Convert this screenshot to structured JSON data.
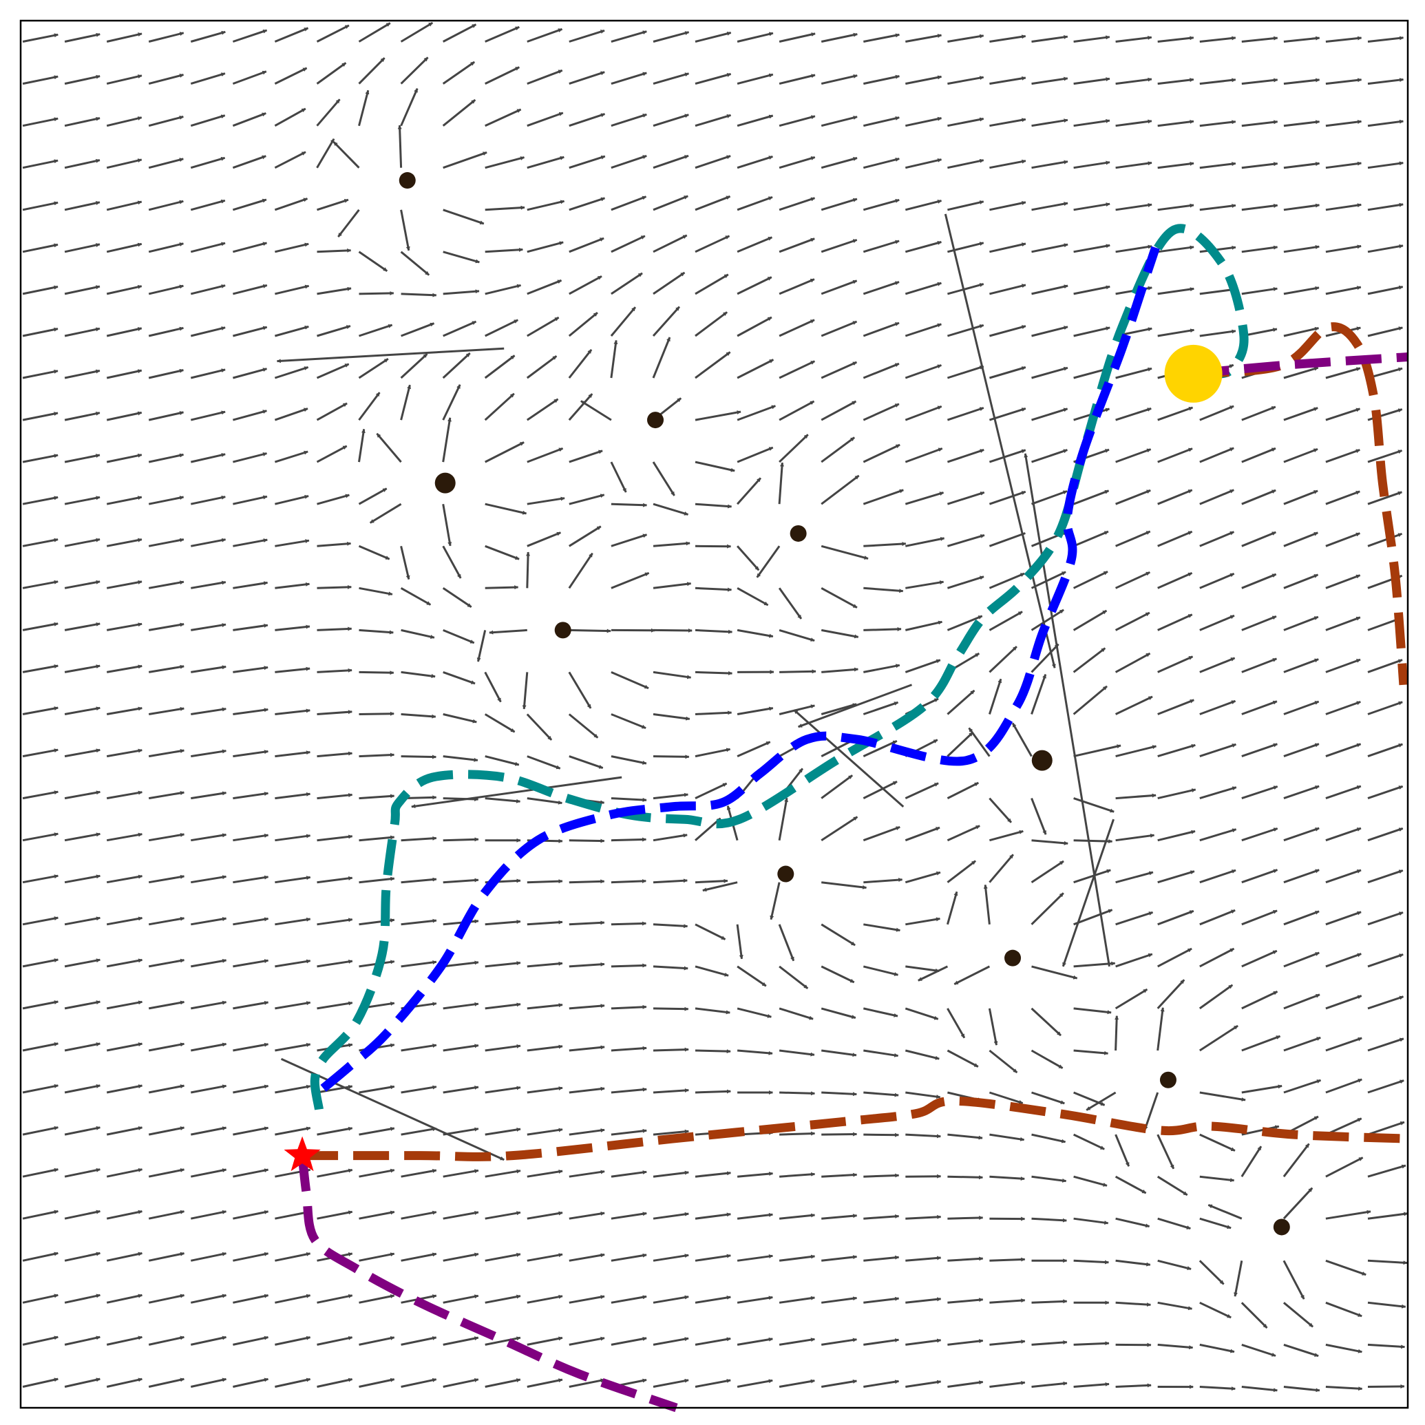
{
  "chart_data": {
    "type": "quiver",
    "title": "",
    "xlabel": "",
    "ylabel": "",
    "xlim": [
      0,
      33
    ],
    "ylim": [
      0,
      33
    ],
    "grid": false,
    "legend": "none",
    "colors": {
      "arrows": "#444444",
      "obstacles": "#2b1a0a",
      "goal": "#ffd400",
      "start": "#ff0000",
      "teal_path": "#008b8b",
      "blue_path": "#0000ff",
      "orange_path": "#a63a0a",
      "purple_path": "#800080"
    },
    "start": [
      6.7,
      6.0
    ],
    "goal": [
      27.9,
      24.6
    ],
    "obstacles": [
      [
        9.2,
        29.2
      ],
      [
        15.1,
        23.5
      ],
      [
        10.1,
        22.0
      ],
      [
        18.5,
        20.8
      ],
      [
        12.9,
        18.5
      ],
      [
        24.3,
        15.4
      ],
      [
        18.2,
        12.7
      ],
      [
        23.6,
        10.7
      ],
      [
        27.3,
        7.8
      ],
      [
        30.0,
        4.3
      ]
    ],
    "paths": [
      {
        "id": "teal",
        "points": [
          [
            7.1,
            7.1
          ],
          [
            7.0,
            7.8
          ],
          [
            7.2,
            8.3
          ],
          [
            8.0,
            9.2
          ],
          [
            8.6,
            10.8
          ],
          [
            8.7,
            12.4
          ],
          [
            8.9,
            13.9
          ],
          [
            9.0,
            14.4
          ],
          [
            9.8,
            15.0
          ],
          [
            11.5,
            15.0
          ],
          [
            13.0,
            14.5
          ],
          [
            14.5,
            14.1
          ],
          [
            15.8,
            14.0
          ],
          [
            17.1,
            14.0
          ],
          [
            19.4,
            15.4
          ],
          [
            21.5,
            16.7
          ],
          [
            22.3,
            17.9
          ],
          [
            22.9,
            18.8
          ],
          [
            23.8,
            19.6
          ],
          [
            24.7,
            20.8
          ],
          [
            25.3,
            22.8
          ],
          [
            26.2,
            25.7
          ],
          [
            27.4,
            28.0
          ],
          [
            28.6,
            27.2
          ],
          [
            29.1,
            25.5
          ],
          [
            28.8,
            24.7
          ],
          [
            28.3,
            24.6
          ]
        ]
      },
      {
        "id": "blue",
        "points": [
          [
            7.2,
            7.6
          ],
          [
            7.8,
            8.1
          ],
          [
            8.7,
            8.9
          ],
          [
            10.0,
            10.5
          ],
          [
            11.0,
            12.2
          ],
          [
            12.3,
            13.5
          ],
          [
            14.0,
            14.1
          ],
          [
            15.5,
            14.3
          ],
          [
            16.7,
            14.4
          ],
          [
            17.6,
            15.1
          ],
          [
            18.7,
            15.9
          ],
          [
            19.9,
            15.9
          ],
          [
            22.5,
            15.4
          ],
          [
            23.7,
            16.7
          ],
          [
            24.3,
            18.4
          ],
          [
            25.0,
            20.2
          ],
          [
            24.9,
            21.2
          ],
          [
            25.3,
            22.8
          ],
          [
            26.2,
            25.2
          ],
          [
            26.8,
            27.0
          ],
          [
            27.0,
            27.6
          ]
        ]
      },
      {
        "id": "orange",
        "points": [
          [
            6.7,
            6.0
          ],
          [
            9.5,
            6.0
          ],
          [
            11.7,
            6.0
          ],
          [
            15.5,
            6.4
          ],
          [
            19.5,
            6.8
          ],
          [
            21.3,
            7.0
          ],
          [
            22.2,
            7.3
          ],
          [
            24.7,
            7.0
          ],
          [
            27.1,
            6.6
          ],
          [
            28.3,
            6.7
          ],
          [
            30.3,
            6.5
          ],
          [
            33.0,
            6.4
          ]
        ]
      },
      {
        "id": "orange-goal",
        "points": [
          [
            27.9,
            24.6
          ],
          [
            30.0,
            24.8
          ],
          [
            31.1,
            25.7
          ],
          [
            31.8,
            25.3
          ],
          [
            32.2,
            24.0
          ],
          [
            32.4,
            22.0
          ],
          [
            32.7,
            19.8
          ],
          [
            32.9,
            17.2
          ]
        ]
      },
      {
        "id": "purple",
        "points": [
          [
            6.7,
            6.0
          ],
          [
            6.8,
            5.1
          ],
          [
            7.0,
            4.0
          ],
          [
            8.0,
            3.3
          ],
          [
            9.5,
            2.5
          ],
          [
            11.5,
            1.6
          ],
          [
            13.3,
            0.8
          ],
          [
            15.6,
            0.0
          ]
        ]
      },
      {
        "id": "purple-goal",
        "points": [
          [
            27.9,
            24.6
          ],
          [
            30.0,
            24.8
          ],
          [
            33.0,
            25.0
          ]
        ]
      }
    ],
    "wild_vectors": [
      [
        22.0,
        28.4,
        24.6,
        17.6
      ],
      [
        11.5,
        25.2,
        6.1,
        24.9
      ],
      [
        6.2,
        8.3,
        11.5,
        5.9
      ],
      [
        14.3,
        15.0,
        9.3,
        14.3
      ],
      [
        26.0,
        14.0,
        24.8,
        10.5
      ],
      [
        25.9,
        10.5,
        23.9,
        22.7
      ],
      [
        21.2,
        17.2,
        18.5,
        16.2
      ],
      [
        21.0,
        14.3,
        18.4,
        16.6
      ]
    ]
  }
}
